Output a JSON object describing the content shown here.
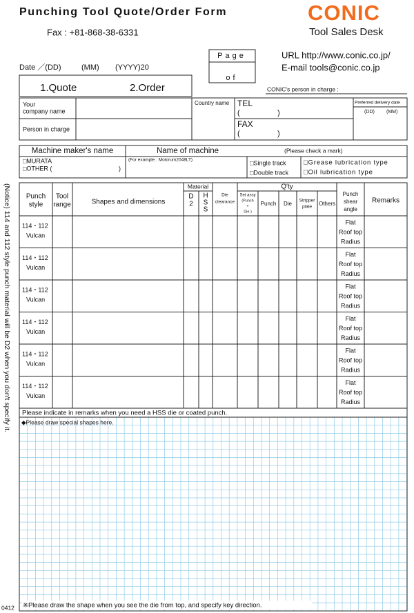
{
  "header": {
    "title": "Punching Tool Quote/Order Form",
    "fax": "Fax : +81-868-38-6331",
    "logo": "CONIC",
    "desk": "Tool Sales Desk",
    "page": "Page",
    "page_of": "of",
    "url": "URL http://www.conic.co.jp/",
    "email": "E-mail tools@conic.co.jp",
    "date_dd": "Date ／(DD)",
    "date_mm": "(MM)",
    "date_yyyy": "(YYYY)20",
    "quote": "1.Quote",
    "order": "2.Order",
    "conic_person": "CONIC's person in charge :"
  },
  "customer": {
    "company_1": "Your",
    "company_2": "company name",
    "person": "Person in charge",
    "country": "Country name",
    "tel": "TEL",
    "tel_open": "(",
    "tel_close": ")",
    "fax": "FAX",
    "fax_open": "(",
    "fax_close": ")",
    "delivery": "Preferred delivery date",
    "delivery_dd": "(DD)",
    "delivery_mm": "(MM)"
  },
  "machine": {
    "maker_header": "Machine maker's name",
    "name_header": "Name of machine",
    "check_note": "(Please check a mark)",
    "murata": "□MURATA",
    "other": "□OTHER (",
    "other_close": ")",
    "example": "(For example : Motorum2048LT)",
    "single": "□Single track",
    "double": "□Double track",
    "grease": "□Grease lubrication type",
    "oil": "□Oil lubrication type"
  },
  "table": {
    "headers": {
      "punch_style_1": "Punch",
      "punch_style_2": "style",
      "tool_range_1": "Tool",
      "tool_range_2": "range",
      "shapes": "Shapes and dimensions",
      "material": "Material",
      "d2_1": "D",
      "d2_2": "2",
      "hss_1": "H",
      "hss_2": "S",
      "hss_3": "S",
      "die_clearance_1": "Die",
      "die_clearance_2": "clearance",
      "qty": "Q'ty",
      "set_assy_1": "Set assy",
      "set_assy_2": "(Punch",
      "set_assy_3": "+",
      "set_assy_4": "Die  )",
      "punch": "Punch",
      "die": "Die",
      "stripper_1": "Stripper",
      "stripper_2": "plate",
      "others": "Others",
      "shear_1": "Punch",
      "shear_2": "shear",
      "shear_3": "angle",
      "remarks": "Remarks"
    },
    "rows": [
      {
        "style": [
          "114・112",
          "Vulcan"
        ],
        "shear": [
          "Flat",
          "Roof top",
          "Radius"
        ]
      },
      {
        "style": [
          "114・112",
          "Vulcan"
        ],
        "shear": [
          "Flat",
          "Roof top",
          "Radius"
        ]
      },
      {
        "style": [
          "114・112",
          "Vulcan"
        ],
        "shear": [
          "Flat",
          "Roof top",
          "Radius"
        ]
      },
      {
        "style": [
          "114・112",
          "Vulcan"
        ],
        "shear": [
          "Flat",
          "Roof top",
          "Radius"
        ]
      },
      {
        "style": [
          "114・112",
          "Vulcan"
        ],
        "shear": [
          "Flat",
          "Roof top",
          "Radius"
        ]
      },
      {
        "style": [
          "114・112",
          "Vulcan"
        ],
        "shear": [
          "Flat",
          "Roof top",
          "Radius"
        ]
      }
    ],
    "note": "Please indicate in remarks when you need a HSS die or coated punch."
  },
  "drawing": {
    "title": "◆Please draw special shapes here.",
    "footer": "※Please draw the shape when you see the die from top, and specify key direction."
  },
  "side_notice": "(Notice)  114 and 112 style punch material will be D2 when you don't specify it.",
  "code": "0412"
}
